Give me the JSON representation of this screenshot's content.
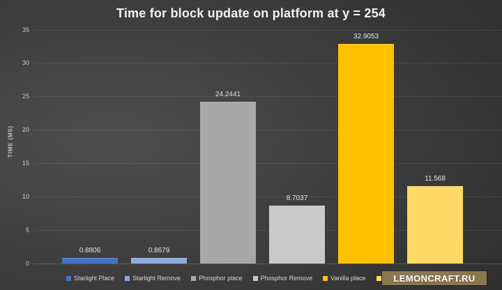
{
  "title": "Time for block update on platform at y = 254",
  "y_axis_label": "TIME (MS)",
  "chart_data": {
    "type": "bar",
    "title": "Time for block update on platform at y = 254",
    "ylabel": "TIME (MS)",
    "xlabel": "",
    "ylim": [
      0,
      35
    ],
    "yticks": [
      0,
      5,
      10,
      15,
      20,
      25,
      30,
      35
    ],
    "grid": true,
    "legend_position": "bottom",
    "categories": [
      "Starlight Place",
      "Starlight Remove",
      "Phosphor place",
      "Phosphor Remove",
      "Vanilla place",
      ""
    ],
    "values": [
      0.8806,
      0.8679,
      24.2441,
      8.7037,
      32.9053,
      11.568
    ],
    "value_labels": [
      "0.8806",
      "0.8679",
      "24.2441",
      "8.7037",
      "32.9053",
      "11.568"
    ],
    "colors": [
      "#4472C4",
      "#8FAADC",
      "#A8A8A8",
      "#C9C9C9",
      "#FFC000",
      "#FFD966"
    ]
  },
  "watermark": {
    "text": "LEMONCRAFT.RU",
    "bg_color": "#8C7850",
    "text_color": "#FFFFFF"
  }
}
